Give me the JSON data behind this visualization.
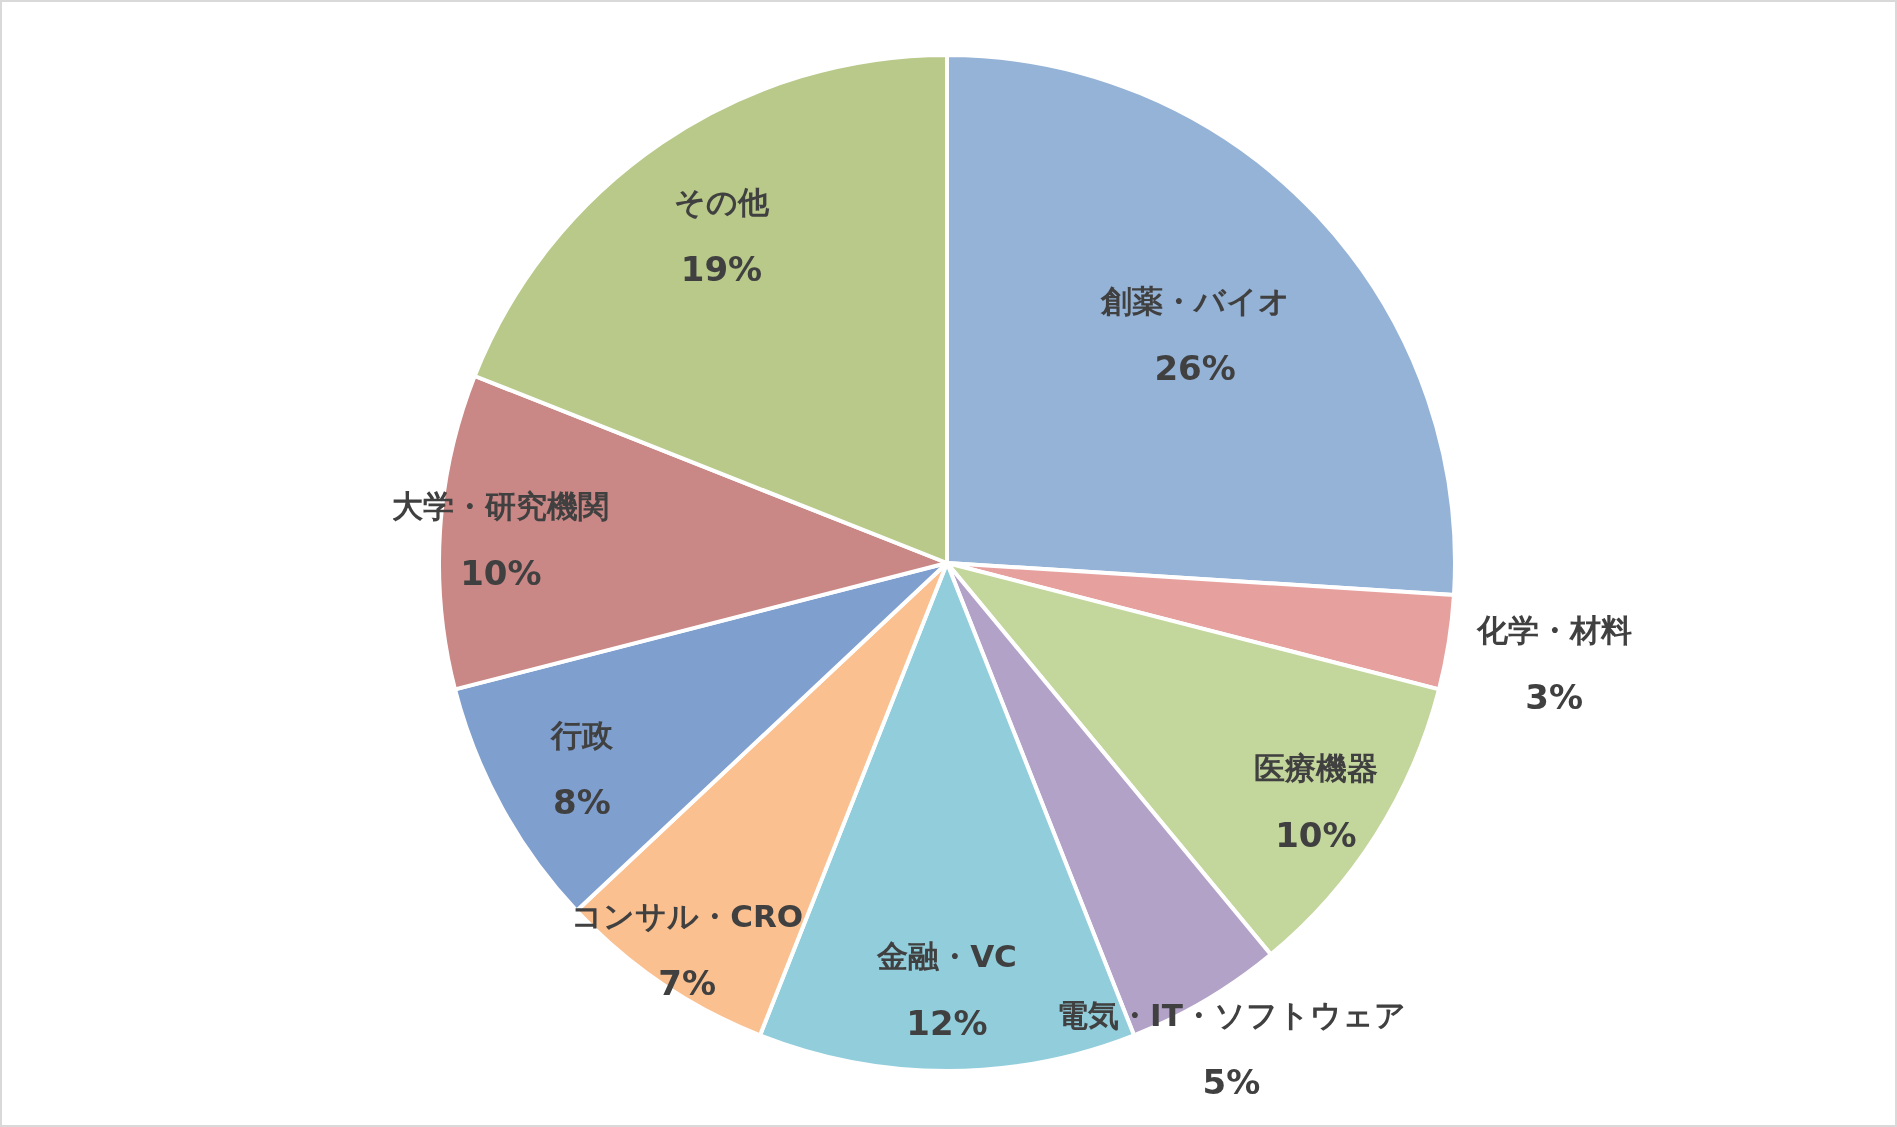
{
  "chart_data": {
    "type": "pie",
    "categories": [
      "創薬・バイオ",
      "化学・材料",
      "医療機器",
      "電気・IT・ソフトウェア",
      "金融・VC",
      "コンサル・CRO",
      "行政",
      "大学・研究機関",
      "その他"
    ],
    "values": [
      26,
      3,
      10,
      5,
      12,
      7,
      8,
      10,
      19
    ],
    "value_labels": [
      "26%",
      "3%",
      "10%",
      "5%",
      "12%",
      "7%",
      "8%",
      "10%",
      "19%"
    ],
    "colors": [
      "#95b3d7",
      "#e6a19f",
      "#c3d69b",
      "#b3a2c7",
      "#92cddc",
      "#fac090",
      "#7f9fcf",
      "#c98785",
      "#b8c98a"
    ]
  }
}
